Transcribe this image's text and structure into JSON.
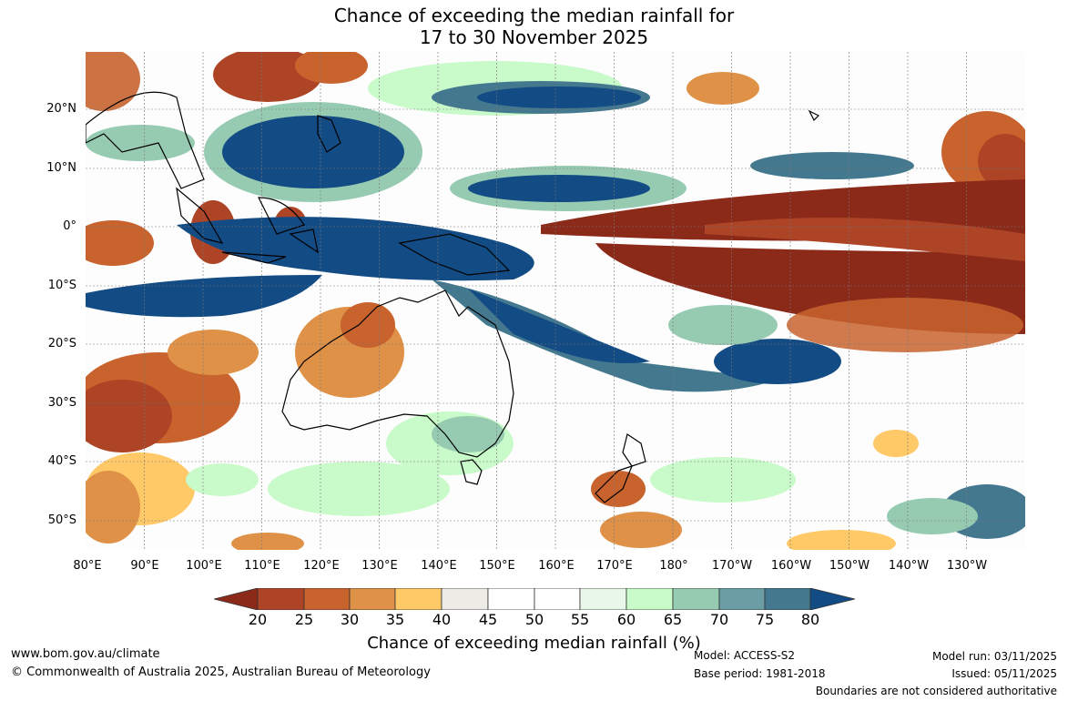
{
  "header": {
    "title_line1": "Chance of exceeding the median rainfall for",
    "title_line2": "17 to 30 November 2025"
  },
  "map": {
    "lat_labels": [
      "20°N",
      "10°N",
      "0°",
      "10°S",
      "20°S",
      "30°S",
      "40°S",
      "50°S"
    ],
    "lon_labels": [
      "80°E",
      "90°E",
      "100°E",
      "110°E",
      "120°E",
      "130°E",
      "140°E",
      "150°E",
      "160°E",
      "170°E",
      "180°",
      "170°W",
      "160°W",
      "150°W",
      "140°W",
      "130°W"
    ]
  },
  "legend": {
    "title": "Chance of exceeding median rainfall (%)",
    "ticks": [
      "20",
      "25",
      "30",
      "35",
      "40",
      "45",
      "50",
      "55",
      "60",
      "65",
      "70",
      "75",
      "80"
    ],
    "colors": {
      "below_20": "#8c2a1a",
      "20_25": "#ad4426",
      "25_30": "#c8632e",
      "30_35": "#de9147",
      "35_40": "#fec966",
      "40_45": "#ecebe6",
      "45_50": "#ffffff",
      "50_55": "#ffffff",
      "55_60": "#e8f7e8",
      "60_65": "#c9fac9",
      "65_70": "#96cbb2",
      "70_75": "#6a9ea4",
      "75_80": "#44788f",
      "above_80": "#134b84"
    }
  },
  "footer": {
    "url": "www.bom.gov.au/climate",
    "copyright": "© Commonwealth of Australia 2025, Australian Bureau of Meteorology",
    "model": "Model: ACCESS-S2",
    "base_period": "Base period: 1981-2018",
    "model_run": "Model run: 03/11/2025",
    "issued": "Issued: 05/11/2025",
    "disclaimer": "Boundaries are not considered authoritative"
  }
}
